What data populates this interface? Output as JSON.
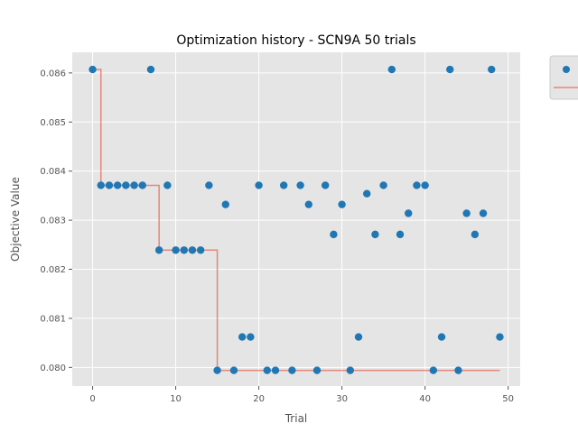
{
  "chart_data": {
    "type": "scatter",
    "title": "Optimization history - SCN9A 50 trials",
    "xlabel": "Trial",
    "ylabel": "Objective Value",
    "xlim": [
      -2.45,
      51.45
    ],
    "ylim": [
      0.07962,
      0.08642
    ],
    "x_ticks": [
      0,
      10,
      20,
      30,
      40,
      50
    ],
    "y_ticks": [
      0.08,
      0.081,
      0.082,
      0.083,
      0.084,
      0.085,
      0.086
    ],
    "y_tick_labels": [
      "0.080",
      "0.081",
      "0.082",
      "0.083",
      "0.084",
      "0.085",
      "0.086"
    ],
    "grid": true,
    "legend_placement": "outside-top-right",
    "series": [
      {
        "kind": "scatter",
        "color": "#1f77b4",
        "x": [
          0,
          1,
          2,
          3,
          4,
          5,
          6,
          7,
          8,
          9,
          10,
          11,
          12,
          13,
          14,
          15,
          16,
          17,
          18,
          19,
          20,
          21,
          22,
          23,
          24,
          25,
          26,
          27,
          28,
          29,
          30,
          31,
          32,
          33,
          34,
          35,
          36,
          37,
          38,
          39,
          40,
          41,
          42,
          43,
          44,
          45,
          46,
          47,
          48,
          49
        ],
        "y": [
          0.08607,
          0.08371,
          0.08371,
          0.08371,
          0.08371,
          0.08371,
          0.08371,
          0.08607,
          0.08239,
          0.08371,
          0.08239,
          0.08239,
          0.08239,
          0.08239,
          0.08371,
          0.07994,
          0.08332,
          0.07994,
          0.08062,
          0.08062,
          0.08371,
          0.07994,
          0.07994,
          0.08371,
          0.07994,
          0.08371,
          0.08332,
          0.07994,
          0.08371,
          0.08271,
          0.08332,
          0.07994,
          0.08062,
          0.08354,
          0.08271,
          0.08371,
          0.08607,
          0.08271,
          0.08314,
          0.08371,
          0.08371,
          0.07994,
          0.08062,
          0.08607,
          0.07994,
          0.08314,
          0.08271,
          0.08314,
          0.08607,
          0.08062
        ]
      },
      {
        "kind": "step-line",
        "color": "#e24a33",
        "x": [
          0,
          1,
          2,
          3,
          4,
          5,
          6,
          7,
          8,
          9,
          10,
          11,
          12,
          13,
          14,
          15,
          16,
          17,
          18,
          19,
          20,
          21,
          22,
          23,
          24,
          25,
          26,
          27,
          28,
          29,
          30,
          31,
          32,
          33,
          34,
          35,
          36,
          37,
          38,
          39,
          40,
          41,
          42,
          43,
          44,
          45,
          46,
          47,
          48,
          49
        ],
        "y": [
          0.08607,
          0.08371,
          0.08371,
          0.08371,
          0.08371,
          0.08371,
          0.08371,
          0.08371,
          0.08239,
          0.08239,
          0.08239,
          0.08239,
          0.08239,
          0.08239,
          0.08239,
          0.07994,
          0.07994,
          0.07994,
          0.07994,
          0.07994,
          0.07994,
          0.07994,
          0.07994,
          0.07994,
          0.07994,
          0.07994,
          0.07994,
          0.07994,
          0.07994,
          0.07994,
          0.07994,
          0.07994,
          0.07994,
          0.07994,
          0.07994,
          0.07994,
          0.07994,
          0.07994,
          0.07994,
          0.07994,
          0.07994,
          0.07994,
          0.07994,
          0.07994,
          0.07994,
          0.07994,
          0.07994,
          0.07994,
          0.07994,
          0.07994
        ]
      }
    ]
  }
}
